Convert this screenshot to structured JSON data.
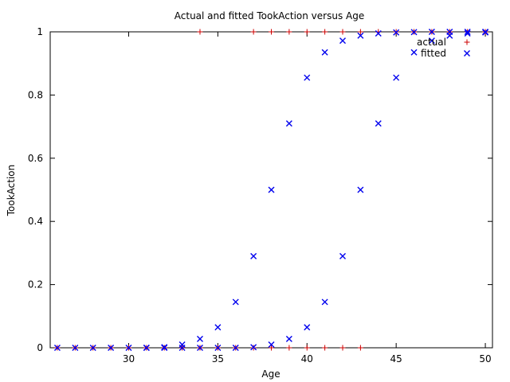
{
  "chart_data": {
    "type": "scatter",
    "title": "Actual and fitted TookAction versus Age",
    "xlabel": "Age",
    "ylabel": "TookAction",
    "xlim": [
      25.6,
      50.4
    ],
    "ylim": [
      0,
      1
    ],
    "x_ticks": [
      30,
      35,
      40,
      45,
      50
    ],
    "y_ticks": [
      0,
      0.2,
      0.4,
      0.6,
      0.8,
      1
    ],
    "grid": false,
    "legend_position": "top-right",
    "series": [
      {
        "name": "actual",
        "marker": "plus",
        "color": "#cc0000",
        "points": [
          [
            26,
            0
          ],
          [
            27,
            0
          ],
          [
            28,
            0
          ],
          [
            29,
            0
          ],
          [
            30,
            0
          ],
          [
            31,
            0
          ],
          [
            32,
            0
          ],
          [
            33,
            0
          ],
          [
            34,
            0
          ],
          [
            34,
            1
          ],
          [
            35,
            0
          ],
          [
            36,
            0
          ],
          [
            37,
            0
          ],
          [
            37,
            1
          ],
          [
            38,
            0
          ],
          [
            38,
            1
          ],
          [
            39,
            0
          ],
          [
            39,
            1
          ],
          [
            40,
            0
          ],
          [
            40,
            1
          ],
          [
            41,
            0
          ],
          [
            41,
            1
          ],
          [
            42,
            0
          ],
          [
            42,
            1
          ],
          [
            43,
            0
          ],
          [
            43,
            1
          ],
          [
            44,
            1
          ],
          [
            45,
            1
          ],
          [
            46,
            1
          ],
          [
            47,
            1
          ],
          [
            48,
            1
          ],
          [
            49,
            1
          ],
          [
            50,
            1
          ]
        ]
      },
      {
        "name": "fitted",
        "marker": "cross",
        "color": "#0000ee",
        "points": [
          [
            26,
            0
          ],
          [
            27,
            0
          ],
          [
            28,
            0
          ],
          [
            29,
            0
          ],
          [
            30,
            0
          ],
          [
            31,
            0
          ],
          [
            32,
            0.002
          ],
          [
            33,
            0.01
          ],
          [
            34,
            0.028
          ],
          [
            35,
            0.065
          ],
          [
            36,
            0.145
          ],
          [
            37,
            0.29
          ],
          [
            38,
            0.5
          ],
          [
            39,
            0.71
          ],
          [
            40,
            0.855
          ],
          [
            41,
            0.935
          ],
          [
            42,
            0.972
          ],
          [
            43,
            0.988
          ],
          [
            44,
            0.995
          ],
          [
            45,
            0.998
          ],
          [
            46,
            0.999
          ],
          [
            47,
            1
          ],
          [
            48,
            1
          ],
          [
            49,
            1
          ],
          [
            50,
            1
          ],
          [
            31,
            0
          ],
          [
            32,
            0
          ],
          [
            33,
            0
          ],
          [
            34,
            0
          ],
          [
            35,
            0
          ],
          [
            36,
            0
          ],
          [
            37,
            0.002
          ],
          [
            38,
            0.01
          ],
          [
            39,
            0.028
          ],
          [
            40,
            0.065
          ],
          [
            41,
            0.145
          ],
          [
            42,
            0.29
          ],
          [
            43,
            0.5
          ],
          [
            44,
            0.71
          ],
          [
            45,
            0.855
          ],
          [
            46,
            0.935
          ],
          [
            47,
            0.972
          ],
          [
            48,
            0.988
          ],
          [
            49,
            0.995
          ],
          [
            50,
            0.998
          ]
        ]
      }
    ]
  }
}
